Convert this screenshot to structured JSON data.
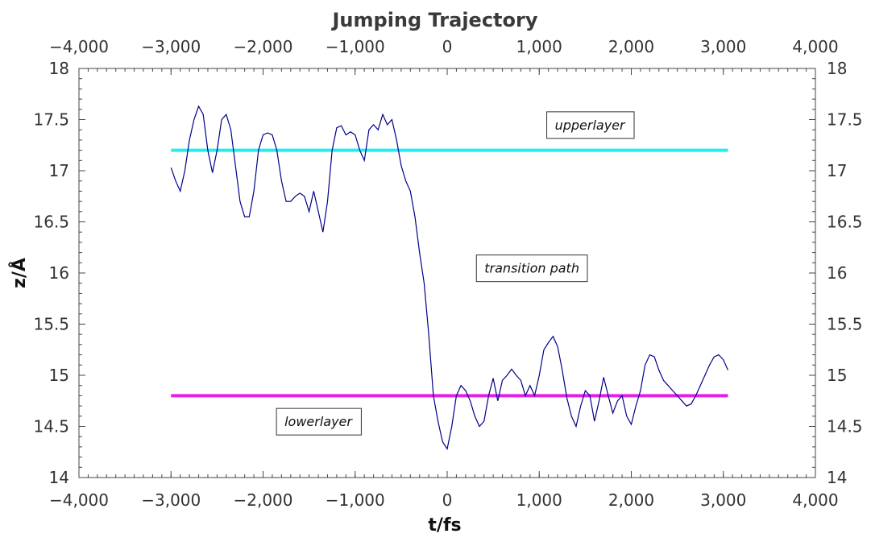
{
  "chart_data": {
    "type": "line",
    "title": "Jumping Trajectory",
    "xlabel": "t/fs",
    "ylabel": "z/Å",
    "xlim": [
      -4000,
      4000
    ],
    "ylim": [
      14,
      18
    ],
    "x_ticks": [
      -4000,
      -3000,
      -2000,
      -1000,
      0,
      1000,
      2000,
      3000,
      4000
    ],
    "x_tick_labels": [
      "−4,000",
      "−3,000",
      "−2,000",
      "−1,000",
      "0",
      "1,000",
      "2,000",
      "3,000",
      "4,000"
    ],
    "y_ticks": [
      14,
      14.5,
      15,
      15.5,
      16,
      16.5,
      17,
      17.5,
      18
    ],
    "y_tick_labels": [
      "14",
      "14.5",
      "15",
      "15.5",
      "16",
      "16.5",
      "17",
      "17.5",
      "18"
    ],
    "grid": false,
    "legend": "none",
    "series": [
      {
        "color": "#00008b",
        "x": [
          -3000,
          -2950,
          -2900,
          -2850,
          -2800,
          -2750,
          -2700,
          -2650,
          -2600,
          -2550,
          -2500,
          -2450,
          -2400,
          -2350,
          -2300,
          -2250,
          -2200,
          -2150,
          -2100,
          -2050,
          -2000,
          -1950,
          -1900,
          -1850,
          -1800,
          -1750,
          -1700,
          -1650,
          -1600,
          -1550,
          -1500,
          -1450,
          -1400,
          -1350,
          -1300,
          -1250,
          -1200,
          -1150,
          -1100,
          -1050,
          -1000,
          -950,
          -900,
          -850,
          -800,
          -750,
          -700,
          -650,
          -600,
          -550,
          -500,
          -450,
          -400,
          -350,
          -300,
          -250,
          -200,
          -150,
          -100,
          -50,
          0,
          50,
          100,
          150,
          200,
          250,
          300,
          350,
          400,
          450,
          500,
          550,
          600,
          650,
          700,
          750,
          800,
          850,
          900,
          950,
          1000,
          1050,
          1100,
          1150,
          1200,
          1250,
          1300,
          1350,
          1400,
          1450,
          1500,
          1550,
          1600,
          1650,
          1700,
          1750,
          1800,
          1850,
          1900,
          1950,
          2000,
          2050,
          2100,
          2150,
          2200,
          2250,
          2300,
          2350,
          2400,
          2450,
          2500,
          2550,
          2600,
          2650,
          2700,
          2750,
          2800,
          2850,
          2900,
          2950,
          3000,
          3050
        ],
        "y": [
          17.03,
          16.9,
          16.8,
          17.0,
          17.3,
          17.5,
          17.63,
          17.55,
          17.2,
          16.98,
          17.2,
          17.5,
          17.55,
          17.4,
          17.05,
          16.7,
          16.55,
          16.55,
          16.8,
          17.2,
          17.35,
          17.37,
          17.35,
          17.2,
          16.9,
          16.7,
          16.7,
          16.75,
          16.78,
          16.75,
          16.6,
          16.8,
          16.6,
          16.4,
          16.7,
          17.2,
          17.42,
          17.44,
          17.35,
          17.38,
          17.35,
          17.2,
          17.1,
          17.4,
          17.45,
          17.4,
          17.55,
          17.45,
          17.5,
          17.3,
          17.05,
          16.9,
          16.8,
          16.55,
          16.2,
          15.9,
          15.4,
          14.8,
          14.55,
          14.35,
          14.28,
          14.5,
          14.8,
          14.9,
          14.85,
          14.75,
          14.6,
          14.5,
          14.55,
          14.8,
          14.97,
          14.75,
          14.95,
          15.0,
          15.06,
          15.0,
          14.95,
          14.8,
          14.9,
          14.8,
          15.0,
          15.25,
          15.32,
          15.38,
          15.28,
          15.05,
          14.78,
          14.6,
          14.5,
          14.7,
          14.85,
          14.8,
          14.55,
          14.75,
          14.98,
          14.8,
          14.63,
          14.75,
          14.8,
          14.6,
          14.52,
          14.7,
          14.85,
          15.1,
          15.2,
          15.18,
          15.05,
          14.95,
          14.9,
          14.85,
          14.8,
          14.75,
          14.7,
          14.72,
          14.8,
          14.9,
          15.0,
          15.1,
          15.18,
          15.2,
          15.15,
          15.05
        ]
      }
    ],
    "reference_lines": [
      {
        "label": "upperlayer",
        "y": 17.2,
        "x_range": [
          -3000,
          3050
        ],
        "color": "#1ef0f0"
      },
      {
        "label": "lowerlayer",
        "y": 14.8,
        "x_range": [
          -3000,
          3050
        ],
        "color": "#e61ee6"
      }
    ],
    "annotations": [
      {
        "text": "upperlayer",
        "x": 1550,
        "y": 17.45
      },
      {
        "text": "transition path",
        "x": 920,
        "y": 16.05
      },
      {
        "text": "lowerlayer",
        "x": -1400,
        "y": 14.55
      }
    ]
  }
}
